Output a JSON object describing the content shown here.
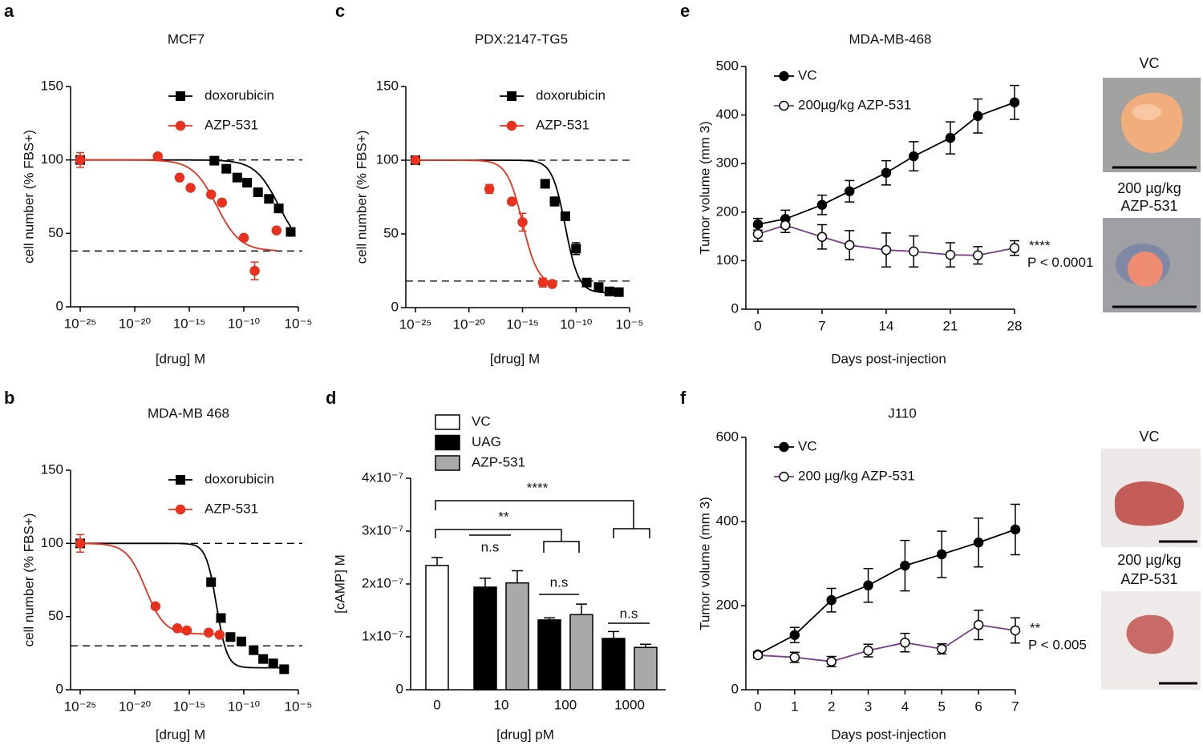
{
  "chart_data": [
    {
      "panel": "a",
      "type": "scatter",
      "title": "MCF7",
      "x_label": "[drug] M",
      "y_label": "cell number (% FBS+)",
      "log_x": true,
      "xlim": [
        1e-25,
        1e-05
      ],
      "xticks": [
        {
          "value": 1e-25,
          "label": "10⁻²⁵"
        },
        {
          "value": 1e-20,
          "label": "10⁻²⁰"
        },
        {
          "value": 1e-15,
          "label": "10⁻¹⁵"
        },
        {
          "value": 1e-10,
          "label": "10⁻¹⁰"
        },
        {
          "value": 1e-05,
          "label": "10⁻⁵"
        }
      ],
      "ylim": [
        0,
        150
      ],
      "yticks": [
        0,
        50,
        100,
        150
      ],
      "reference_lines": [
        100,
        38
      ],
      "legend": "upper right",
      "series": [
        {
          "name": "doxorubicin",
          "color": "#000000",
          "marker": "square",
          "x": [
            1e-25,
            2e-13,
            2.5e-12,
            2.5e-11,
            2e-10,
            2e-09,
            2e-08,
            1.6e-07,
            2e-06
          ],
          "values": [
            100,
            99.5,
            94,
            88,
            84.5,
            78,
            73.5,
            67,
            51
          ],
          "errors": [
            null,
            null,
            null,
            null,
            null,
            null,
            null,
            null,
            null
          ],
          "fit": {
            "top": 100,
            "bottom": 38,
            "log_ic50": -6.8,
            "hill": 0.4
          }
        },
        {
          "name": "AZP-531",
          "color": "#e8321e",
          "marker": "circle",
          "x": [
            1e-25,
            1.3e-18,
            1.3e-16,
            1.3e-15,
            1e-13,
            1e-12,
            1e-10,
            1e-09,
            1e-07
          ],
          "values": [
            100,
            102.5,
            88,
            81,
            76.5,
            71,
            47,
            24.5,
            52
          ],
          "errors": [
            5,
            null,
            null,
            null,
            null,
            null,
            null,
            6,
            null
          ],
          "fit": {
            "top": 100,
            "bottom": 38,
            "log_ic50": -12.5,
            "hill": 0.4
          }
        }
      ]
    },
    {
      "panel": "b",
      "type": "scatter",
      "title": "MDA-MB 468",
      "x_label": "[drug] M",
      "y_label": "cell number (% FBS+)",
      "log_x": true,
      "xlim": [
        1e-25,
        1e-05
      ],
      "xticks": [
        {
          "value": 1e-25,
          "label": "10⁻²⁵"
        },
        {
          "value": 1e-20,
          "label": "10⁻²⁰"
        },
        {
          "value": 1e-15,
          "label": "10⁻¹⁵"
        },
        {
          "value": 1e-10,
          "label": "10⁻¹⁰"
        },
        {
          "value": 1e-05,
          "label": "10⁻⁵"
        }
      ],
      "ylim": [
        0,
        150
      ],
      "yticks": [
        0,
        50,
        100,
        150
      ],
      "reference_lines": [
        100,
        30
      ],
      "legend": "upper right",
      "series": [
        {
          "name": "doxorubicin",
          "color": "#000000",
          "marker": "square",
          "x": [
            1e-25,
            1e-13,
            8e-13,
            6e-12,
            6e-11,
            8e-10,
            6e-09,
            5e-08,
            5e-07
          ],
          "values": [
            100,
            73.5,
            49,
            36,
            33,
            27,
            21,
            18,
            14
          ],
          "errors": [
            null,
            null,
            null,
            null,
            null,
            null,
            null,
            null,
            null
          ],
          "fit": {
            "top": 100,
            "bottom": 15,
            "log_ic50": -12.5,
            "hill": 0.9
          }
        },
        {
          "name": "AZP-531",
          "color": "#e8321e",
          "marker": "circle",
          "x": [
            1e-25,
            8e-19,
            8e-17,
            6e-16,
            6e-14,
            6e-13
          ],
          "values": [
            100,
            57,
            42,
            40.5,
            39,
            37.5
          ],
          "errors": [
            6,
            null,
            null,
            null,
            null,
            null
          ],
          "fit": {
            "top": 100,
            "bottom": 38,
            "log_ic50": -19,
            "hill": 0.5
          }
        }
      ]
    },
    {
      "panel": "c",
      "type": "scatter",
      "title": "PDX:2147-TG5",
      "x_label": "[drug] M",
      "y_label": "cell number (% FBS+)",
      "log_x": true,
      "xlim": [
        1e-25,
        1e-05
      ],
      "xticks": [
        {
          "value": 1e-25,
          "label": "10⁻²⁵"
        },
        {
          "value": 1e-20,
          "label": "10⁻²⁰"
        },
        {
          "value": 1e-15,
          "label": "10⁻¹⁵"
        },
        {
          "value": 1e-10,
          "label": "10⁻¹⁰"
        },
        {
          "value": 1e-05,
          "label": "10⁻⁵"
        }
      ],
      "ylim": [
        0,
        150
      ],
      "yticks": [
        0,
        50,
        100,
        150
      ],
      "reference_lines": [
        100,
        18
      ],
      "legend": "upper right",
      "series": [
        {
          "name": "doxorubicin",
          "color": "#000000",
          "marker": "square",
          "x": [
            1e-25,
            1.3e-13,
            1e-12,
            1e-11,
            1e-10,
            1e-09,
            1.3e-08,
            1.3e-07,
            1e-06
          ],
          "values": [
            100,
            84,
            72,
            62,
            40,
            17,
            14,
            11,
            10.5
          ],
          "errors": [
            null,
            2,
            3,
            2,
            4,
            null,
            null,
            null,
            null
          ],
          "fit": {
            "top": 100,
            "bottom": 10,
            "log_ic50": -11,
            "hill": 0.7
          }
        },
        {
          "name": "AZP-531",
          "color": "#e8321e",
          "marker": "circle",
          "x": [
            1e-25,
            8e-19,
            1e-16,
            1e-15,
            8e-14,
            6e-13
          ],
          "values": [
            100,
            80.5,
            72,
            58,
            17,
            16
          ],
          "errors": [
            null,
            3,
            null,
            6,
            3,
            null
          ],
          "fit": {
            "top": 100,
            "bottom": 15,
            "log_ic50": -15,
            "hill": 0.6
          }
        }
      ]
    },
    {
      "panel": "d",
      "type": "bar",
      "x_label": "[drug] pM",
      "y_label": "[cAMP] M",
      "categories": [
        "0",
        "10",
        "100",
        "1000"
      ],
      "ylim": [
        0,
        4e-07
      ],
      "yticks": [
        0,
        {
          "value": 1e-07,
          "label": "1x10⁻⁷"
        },
        {
          "value": 2e-07,
          "label": "2x10⁻⁷"
        },
        {
          "value": 3e-07,
          "label": "3x10⁻⁷"
        },
        {
          "value": 4e-07,
          "label": "4x10⁻⁷"
        }
      ],
      "legend": "upper left",
      "series": [
        {
          "name": "VC",
          "color": "#ffffff",
          "values": [
            2.35e-07,
            null,
            null,
            null
          ],
          "errors": [
            1.5e-08,
            null,
            null,
            null
          ]
        },
        {
          "name": "UAG",
          "color": "#000000",
          "values": [
            null,
            1.94e-07,
            1.32e-07,
            9.7e-08
          ],
          "errors": [
            null,
            1.7e-08,
            4e-09,
            1.3e-08
          ]
        },
        {
          "name": "AZP-531",
          "color": "#a9a9a9",
          "values": [
            null,
            2.02e-07,
            1.42e-07,
            8e-08
          ],
          "errors": [
            null,
            2.3e-08,
            2e-08,
            6e-09
          ]
        }
      ],
      "annotations": [
        {
          "text": "****"
        },
        {
          "text": "**"
        },
        {
          "text": "n.s"
        },
        {
          "text": "n.s"
        },
        {
          "text": "n.s"
        }
      ]
    },
    {
      "panel": "e",
      "type": "line",
      "title": "MDA-MB-468",
      "x_label": "Days post-injection",
      "y_label": "Tumor volume (mm 3)",
      "x": [
        0,
        3,
        7,
        10,
        14,
        17,
        21,
        24,
        28
      ],
      "xlim": [
        0,
        28
      ],
      "xticks": [
        0,
        7,
        14,
        21,
        28
      ],
      "ylim": [
        0,
        500
      ],
      "yticks": [
        0,
        100,
        200,
        300,
        400,
        500
      ],
      "legend": "upper left",
      "series": [
        {
          "name": "VC",
          "color": "#000000",
          "marker": "circle",
          "values": [
            175,
            186,
            215,
            243,
            281,
            315,
            353,
            398,
            426
          ],
          "errors": [
            12,
            18,
            20,
            22,
            25,
            30,
            33,
            35,
            35
          ]
        },
        {
          "name": "200µg/kg AZP-531",
          "color": "#7b3a8c",
          "marker": "open-circle",
          "marker_color": "#000000",
          "values": [
            155,
            173,
            149,
            132,
            122,
            119,
            112,
            111,
            126
          ],
          "errors": [
            15,
            15,
            25,
            30,
            35,
            32,
            25,
            18,
            15
          ]
        }
      ],
      "annotations": [
        {
          "text": "****",
          "color": "#9b3fa0"
        },
        {
          "text": "P < 0.0001"
        }
      ]
    },
    {
      "panel": "f",
      "type": "line",
      "title": "J110",
      "x_label": "Days post-injection",
      "y_label": "Tumor volume (mm 3)",
      "x": [
        0,
        1,
        2,
        3,
        4,
        5,
        6,
        7
      ],
      "xlim": [
        0,
        7
      ],
      "xticks": [
        0,
        1,
        2,
        3,
        4,
        5,
        6,
        7
      ],
      "ylim": [
        0,
        600
      ],
      "yticks": [
        0,
        200,
        400,
        600
      ],
      "legend": "upper left",
      "series": [
        {
          "name": "VC",
          "color": "#000000",
          "marker": "circle",
          "values": [
            84,
            130,
            213,
            248,
            295,
            322,
            350,
            381
          ],
          "errors": [
            6,
            18,
            28,
            40,
            60,
            55,
            58,
            60
          ]
        },
        {
          "name": "200 µg/kg AZP-531",
          "color": "#7b3a8c",
          "marker": "open-circle",
          "marker_color": "#000000",
          "values": [
            82,
            77,
            67,
            93,
            112,
            97,
            154,
            141
          ],
          "errors": [
            6,
            12,
            12,
            15,
            22,
            12,
            35,
            30
          ]
        }
      ],
      "annotations": [
        {
          "text": "**",
          "color": "#9b3fa0"
        },
        {
          "text": "P < 0.005"
        }
      ]
    }
  ],
  "photos": [
    {
      "panel": "e",
      "label": "VC",
      "caption": [
        "200 µg/kg",
        "AZP-531"
      ]
    },
    {
      "panel": "f",
      "label": "VC",
      "caption": [
        "200 µg/kg",
        "AZP-531"
      ]
    }
  ]
}
